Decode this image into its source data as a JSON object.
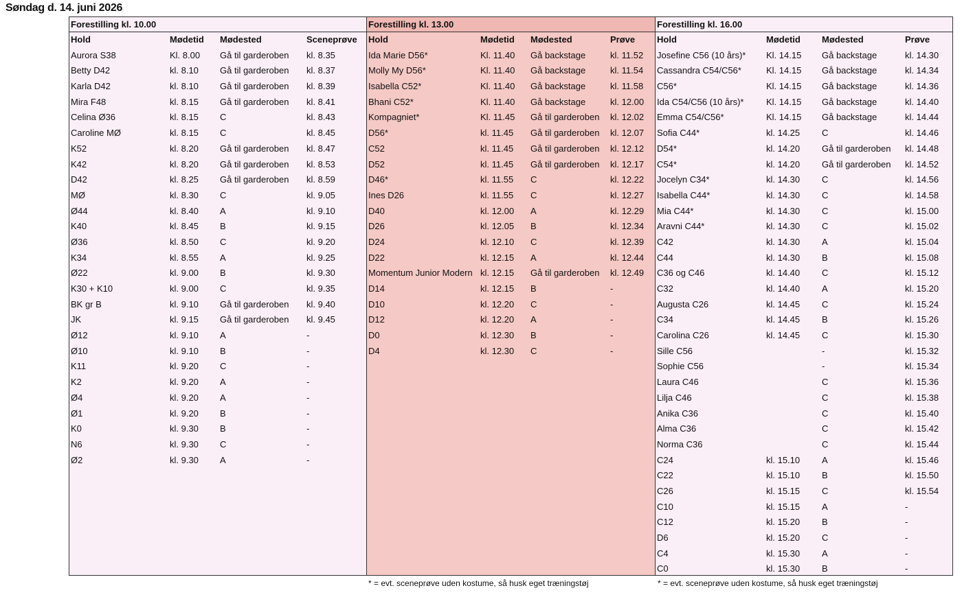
{
  "title": "Søndag d. 14. juni 2026",
  "panels": [
    {
      "heading": "Forestilling kl. 10.00",
      "columns": [
        "Hold",
        "Mødetid",
        "Mødested",
        "Sceneprøve"
      ],
      "rows": [
        [
          "Aurora S38",
          "Kl. 8.00",
          "Gå til garderoben",
          "kl. 8.35"
        ],
        [
          "Betty D42",
          "kl. 8.10",
          "Gå til garderoben",
          "kl. 8.37"
        ],
        [
          "Karla D42",
          "kl. 8.10",
          "Gå til garderoben",
          "kl. 8.39"
        ],
        [
          "Mira F48",
          "kl. 8.15",
          "Gå til garderoben",
          "kl. 8.41"
        ],
        [
          "Celina Ø36",
          "kl. 8.15",
          "C",
          "kl. 8.43"
        ],
        [
          "Caroline MØ",
          "kl. 8.15",
          "C",
          "kl. 8.45"
        ],
        [
          "K52",
          "kl. 8.20",
          "Gå til garderoben",
          "kl. 8.47"
        ],
        [
          "K42",
          "kl. 8.20",
          "Gå til garderoben",
          "kl. 8.53"
        ],
        [
          "D42",
          "kl. 8.25",
          "Gå til garderoben",
          "kl. 8.59"
        ],
        [
          "MØ",
          "kl. 8.30",
          "C",
          "kl. 9.05"
        ],
        [
          "Ø44",
          "kl. 8.40",
          "A",
          "kl. 9.10"
        ],
        [
          "K40",
          "kl. 8.45",
          "B",
          "kl. 9.15"
        ],
        [
          "Ø36",
          "kl. 8.50",
          "C",
          "kl. 9.20"
        ],
        [
          "K34",
          "kl. 8.55",
          "A",
          "kl. 9.25"
        ],
        [
          "Ø22",
          "kl. 9.00",
          "B",
          "kl. 9.30"
        ],
        [
          "K30 + K10",
          "kl. 9.00",
          "C",
          "kl. 9.35"
        ],
        [
          "BK gr B",
          "kl. 9.10",
          "Gå til garderoben",
          "kl. 9.40"
        ],
        [
          "JK",
          "kl. 9.15",
          "Gå til garderoben",
          "kl. 9.45"
        ],
        [
          "Ø12",
          "kl. 9.10",
          "A",
          "-"
        ],
        [
          "Ø10",
          "kl. 9.10",
          "B",
          "-"
        ],
        [
          "K11",
          "kl. 9.20",
          "C",
          "-"
        ],
        [
          "K2",
          "kl. 9.20",
          "A",
          "-"
        ],
        [
          "Ø4",
          "kl. 9.20",
          "A",
          "-"
        ],
        [
          "Ø1",
          "kl. 9.20",
          "B",
          "-"
        ],
        [
          "K0",
          "kl. 9.30",
          "B",
          "-"
        ],
        [
          "N6",
          "kl. 9.30",
          "C",
          "-"
        ],
        [
          "Ø2",
          "kl. 9.30",
          "A",
          "-"
        ]
      ],
      "note": ""
    },
    {
      "heading": "Forestilling kl. 13.00",
      "columns": [
        "Hold",
        "Mødetid",
        "Mødested",
        "Prøve"
      ],
      "rows": [
        [
          "Ida Marie D56*",
          "Kl. 11.40",
          "Gå backstage",
          "kl. 11.52"
        ],
        [
          "Molly My D56*",
          "Kl. 11.40",
          "Gå backstage",
          "kl. 11.54"
        ],
        [
          "Isabella C52*",
          "Kl. 11.40",
          "Gå backstage",
          "kl. 11.58"
        ],
        [
          "Bhani C52*",
          "Kl. 11.40",
          "Gå backstage",
          "kl. 12.00"
        ],
        [
          "Kompagniet*",
          "Kl. 11.45",
          "Gå til garderoben",
          "kl. 12.02"
        ],
        [
          "D56*",
          "kl. 11.45",
          "Gå til garderoben",
          "kl. 12.07"
        ],
        [
          "C52",
          "kl. 11.45",
          "Gå til garderoben",
          "kl. 12.12"
        ],
        [
          "D52",
          "kl. 11.45",
          "Gå til garderoben",
          "kl. 12.17"
        ],
        [
          "D46*",
          "kl. 11.55",
          "C",
          "kl. 12.22"
        ],
        [
          "Ines D26",
          "kl. 11.55",
          "C",
          "kl. 12.27"
        ],
        [
          "D40",
          "kl. 12.00",
          "A",
          "kl. 12.29"
        ],
        [
          "D26",
          "kl. 12.05",
          "B",
          "kl. 12.34"
        ],
        [
          "D24",
          "kl. 12.10",
          "C",
          "kl. 12.39"
        ],
        [
          "D22",
          "kl. 12.15",
          "A",
          "kl. 12.44"
        ],
        [
          "Momentum Junior Modern",
          "kl. 12.15",
          "Gå til garderoben",
          "kl. 12.49"
        ],
        [
          "D14",
          "kl. 12.15",
          "B",
          "-"
        ],
        [
          "D10",
          "kl. 12.20",
          "C",
          "-"
        ],
        [
          "D12",
          "kl. 12.20",
          "A",
          "-"
        ],
        [
          "D0",
          "kl. 12.30",
          "B",
          "-"
        ],
        [
          "D4",
          "kl. 12.30",
          "C",
          "-"
        ]
      ],
      "note": "* = evt. sceneprøve uden kostume, så husk eget træningstøj"
    },
    {
      "heading": "Forestilling kl. 16.00",
      "columns": [
        "Hold",
        "Mødetid",
        "Mødested",
        "Prøve"
      ],
      "rows": [
        [
          "Josefine C56 (10 års)*",
          "Kl. 14.15",
          "Gå backstage",
          "kl. 14.30"
        ],
        [
          "Cassandra C54/C56*",
          "Kl. 14.15",
          "Gå backstage",
          "kl. 14.34"
        ],
        [
          "C56*",
          "Kl. 14.15",
          "Gå backstage",
          "kl. 14.36"
        ],
        [
          "Ida C54/C56 (10 års)*",
          "Kl. 14.15",
          "Gå backstage",
          "kl. 14.40"
        ],
        [
          "Emma C54/C56*",
          "Kl. 14.15",
          "Gå backstage",
          "kl. 14.44"
        ],
        [
          "Sofia C44*",
          "kl. 14.25",
          "C",
          "kl. 14.46"
        ],
        [
          "D54*",
          "kl. 14.20",
          "Gå til garderoben",
          "kl. 14.48"
        ],
        [
          "C54*",
          "kl. 14.20",
          "Gå til garderoben",
          "kl. 14.52"
        ],
        [
          "Jocelyn C34*",
          "kl. 14.30",
          "C",
          "kl. 14.56"
        ],
        [
          "Isabella C44*",
          "kl. 14.30",
          "C",
          "kl. 14.58"
        ],
        [
          "Mia C44*",
          "kl. 14.30",
          "C",
          "kl. 15.00"
        ],
        [
          "Aravni C44*",
          "kl. 14.30",
          "C",
          "kl. 15.02"
        ],
        [
          "C42",
          "kl. 14.30",
          "A",
          "kl. 15.04"
        ],
        [
          "C44",
          "kl. 14.30",
          "B",
          "kl. 15.08"
        ],
        [
          "C36 og C46",
          "kl. 14.40",
          "C",
          "kl. 15.12"
        ],
        [
          "C32",
          "kl. 14.40",
          "A",
          "kl. 15.20"
        ],
        [
          "Augusta C26",
          "kl. 14.45",
          "C",
          "kl. 15.24"
        ],
        [
          "C34",
          "kl. 14.45",
          "B",
          "kl. 15.26"
        ],
        [
          "Carolina C26",
          "kl. 14.45",
          "C",
          "kl. 15.30"
        ],
        [
          "Sille C56",
          "",
          "-",
          "kl. 15.32"
        ],
        [
          "Sophie C56",
          "",
          "-",
          "kl. 15.34"
        ],
        [
          "Laura C46",
          "",
          "C",
          "kl. 15.36"
        ],
        [
          "Lilja C46",
          "",
          "C",
          "kl. 15.38"
        ],
        [
          "Anika C36",
          "",
          "C",
          "kl. 15.40"
        ],
        [
          "Alma C36",
          "",
          "C",
          "kl. 15.42"
        ],
        [
          "Norma C36",
          "",
          "C",
          "kl. 15.44"
        ],
        [
          "C24",
          "kl. 15.10",
          "A",
          "kl. 15.46"
        ],
        [
          "C22",
          "kl. 15.10",
          "B",
          "kl. 15.50"
        ],
        [
          "C26",
          "kl. 15.15",
          "C",
          "kl. 15.54"
        ],
        [
          "C10",
          "kl. 15.15",
          "A",
          "-"
        ],
        [
          "C12",
          "kl. 15.20",
          "B",
          "-"
        ],
        [
          "D6",
          "kl. 15.20",
          "C",
          "-"
        ],
        [
          "C4",
          "kl. 15.30",
          "A",
          "-"
        ],
        [
          "C0",
          "kl. 15.30",
          "B",
          "-"
        ]
      ],
      "note": "* = evt. sceneprøve uden kostume, så husk eget træningstøj"
    }
  ]
}
